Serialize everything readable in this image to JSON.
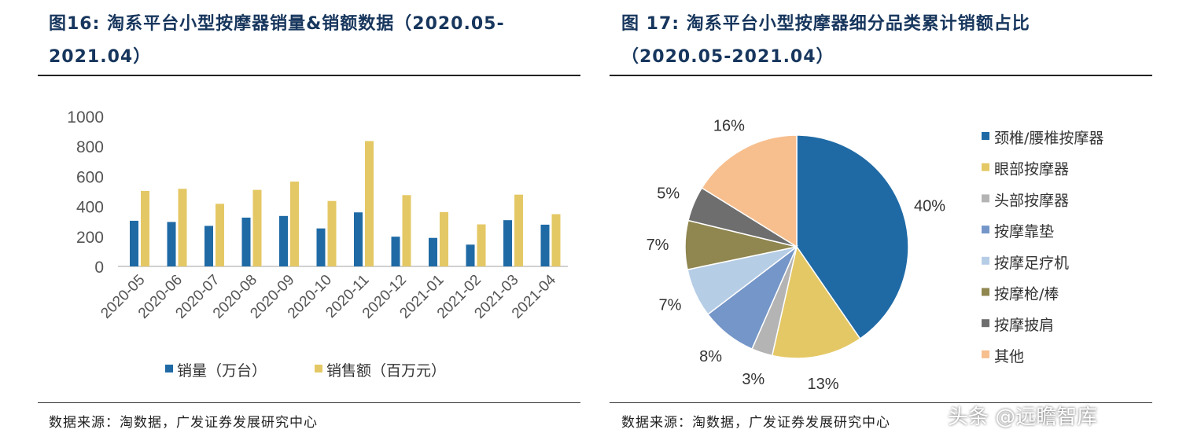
{
  "left": {
    "title": "图16:  淘系平台小型按摩器销量&销额数据（2020.05-2021.04）",
    "title_line1": "图16:  淘系平台小型按摩器销量&销额数据（2020.05-",
    "title_line2": "2021.04）",
    "source": "数据来源：淘数据，广发证券发展研究中心"
  },
  "right": {
    "title_line1": "图 17:  淘系平台小型按摩器细分品类累计销额占比",
    "title_line2": "（2020.05-2021.04）",
    "source": "数据来源：淘数据，广发证券发展研究中心"
  },
  "watermark": "头条 @远瞻智库",
  "chart_data": [
    {
      "type": "bar",
      "categories": [
        "2020-05",
        "2020-06",
        "2020-07",
        "2020-08",
        "2020-09",
        "2020-10",
        "2020-11",
        "2020-12",
        "2021-01",
        "2021-02",
        "2021-03",
        "2021-04"
      ],
      "series": [
        {
          "name": "销量（万台）",
          "color": "#1f6aa5",
          "values": [
            304,
            296,
            270,
            325,
            336,
            253,
            360,
            198,
            190,
            145,
            308,
            278
          ]
        },
        {
          "name": "销售额（百万元）",
          "color": "#e4c865",
          "values": [
            503,
            517,
            417,
            510,
            565,
            436,
            835,
            475,
            362,
            280,
            478,
            348
          ]
        }
      ],
      "yticks": [
        "0",
        "200",
        "400",
        "600",
        "800",
        "1000"
      ],
      "ylim": [
        0,
        1000
      ],
      "legend": "bottom",
      "grid": false
    },
    {
      "type": "pie",
      "start": "top",
      "direction": "clockwise",
      "slices": [
        {
          "name": "颈椎/腰椎按摩器",
          "value": 40,
          "label": "40%",
          "color": "#1f6aa5"
        },
        {
          "name": "眼部按摩器",
          "value": 13,
          "label": "13%",
          "color": "#e4c865"
        },
        {
          "name": "头部按摩器",
          "value": 3,
          "label": "3%",
          "color": "#b4b4b4"
        },
        {
          "name": "按摩靠垫",
          "value": 8,
          "label": "8%",
          "color": "#7596c8"
        },
        {
          "name": "按摩足疗机",
          "value": 7,
          "label": "7%",
          "color": "#b6cde6"
        },
        {
          "name": "按摩枪/棒",
          "value": 7,
          "label": "7%",
          "color": "#8f8650"
        },
        {
          "name": "按摩披肩",
          "value": 5,
          "label": "5%",
          "color": "#6e6e6e"
        },
        {
          "name": "其他",
          "value": 16,
          "label": "16%",
          "color": "#f7bf8e"
        }
      ],
      "legend": "right"
    }
  ]
}
